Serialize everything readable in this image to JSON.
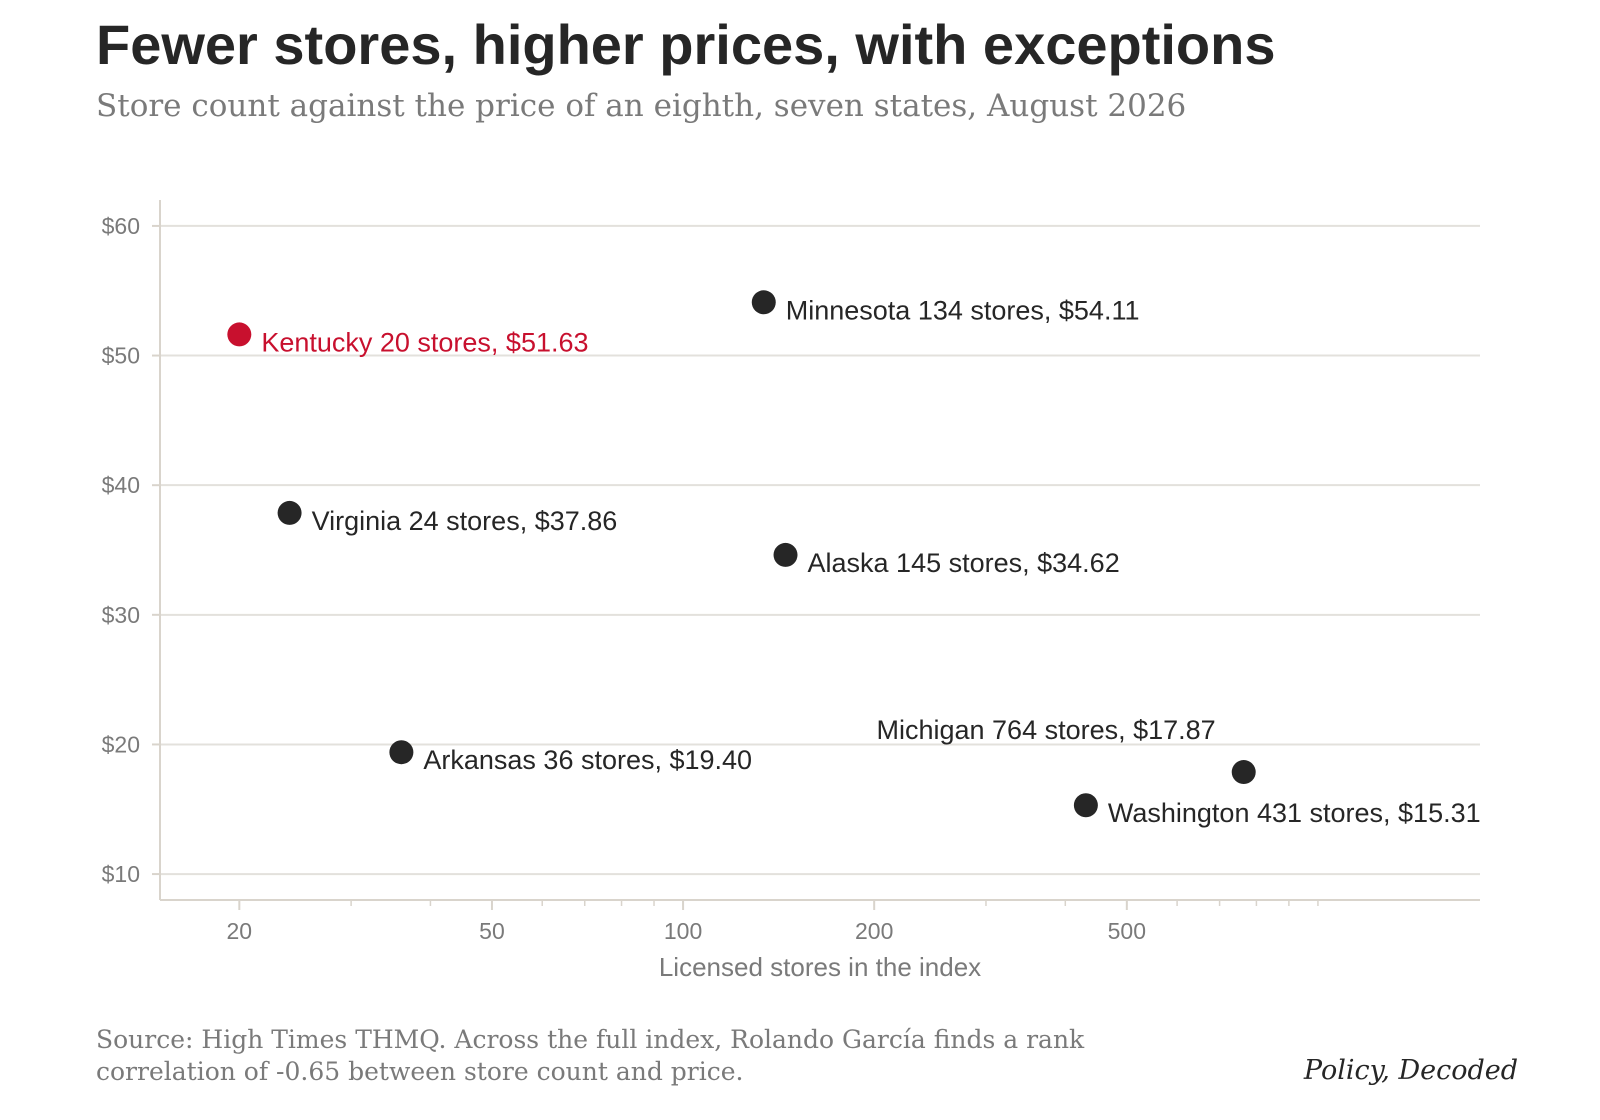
{
  "title": "Fewer stores, higher prices, with exceptions",
  "subtitle": "Store count against the price of an eighth, seven states, August 2026",
  "source": "Source: High Times THMQ. Across the full index, Rolando García finds a rank correlation of -0.65 between store count and price.",
  "brand": "Policy, Decoded",
  "chart_data": {
    "type": "scatter",
    "xlabel": "Licensed stores in the index",
    "ylabel": "",
    "x_scale": "log",
    "xlim": [
      15,
      1800
    ],
    "ylim": [
      8,
      62
    ],
    "x_ticks": [
      {
        "value": 20,
        "label": "20"
      },
      {
        "value": 50,
        "label": "50"
      },
      {
        "value": 100,
        "label": "100"
      },
      {
        "value": 200,
        "label": "200"
      },
      {
        "value": 500,
        "label": "500"
      }
    ],
    "y_ticks": [
      {
        "value": 10,
        "label": "$10"
      },
      {
        "value": 20,
        "label": "$20"
      },
      {
        "value": 30,
        "label": "$30"
      },
      {
        "value": 40,
        "label": "$40"
      },
      {
        "value": 50,
        "label": "$50"
      },
      {
        "value": 60,
        "label": "$60"
      }
    ],
    "grid": "horizontal",
    "colors": {
      "default": "#262626",
      "highlight": "#c8102e",
      "grid": "#e3e1dc",
      "axis": "#d9d4cc",
      "tick_text": "#7a7a7a"
    },
    "points": [
      {
        "state": "Kentucky",
        "stores": 20,
        "price": 51.63,
        "label": "Kentucky  20 stores, $51.63",
        "highlight": true
      },
      {
        "state": "Virginia",
        "stores": 24,
        "price": 37.86,
        "label": "Virginia  24 stores, $37.86",
        "highlight": false
      },
      {
        "state": "Arkansas",
        "stores": 36,
        "price": 19.4,
        "label": "Arkansas  36 stores, $19.40",
        "highlight": false
      },
      {
        "state": "Minnesota",
        "stores": 134,
        "price": 54.11,
        "label": "Minnesota  134 stores, $54.11",
        "highlight": false
      },
      {
        "state": "Alaska",
        "stores": 145,
        "price": 34.62,
        "label": "Alaska  145 stores, $34.62",
        "highlight": false
      },
      {
        "state": "Washington",
        "stores": 431,
        "price": 15.31,
        "label": "Washington  431 stores, $15.31",
        "highlight": false
      },
      {
        "state": "Michigan",
        "stores": 764,
        "price": 17.87,
        "label": "Michigan  764 stores, $17.87",
        "highlight": false
      }
    ]
  }
}
